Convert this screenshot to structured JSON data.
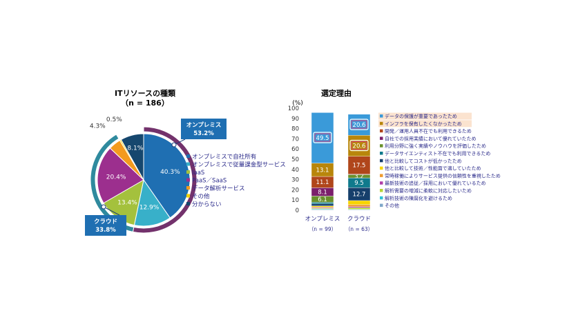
{
  "chart_data": [
    {
      "type": "pie",
      "title": "ITリソースの種類",
      "subtitle": "（n = 186）",
      "slices": [
        {
          "label": "オンプレミスで自社所有",
          "value": 40.3,
          "value_text": "40.3%",
          "color": "#1f6fb2"
        },
        {
          "label": "オンプレミスで従量課金型サービス",
          "value": 12.9,
          "value_text": "12.9%",
          "color": "#38b0c9"
        },
        {
          "label": "IaaS",
          "value": 13.4,
          "value_text": "13.4%",
          "color": "#a4c13d"
        },
        {
          "label": "PaaS／SaaS",
          "value": 20.4,
          "value_text": "20.4%",
          "color": "#9c2f8e"
        },
        {
          "label": "データ解析サービス",
          "value": 4.3,
          "value_text": "4.3%",
          "color": "#f39a1e"
        },
        {
          "label": "その他",
          "value": 0.5,
          "value_text": "0.5%",
          "color": "#f5d200"
        },
        {
          "label": "分からない",
          "value": 8.1,
          "value_text": "8.1%",
          "color": "#16476e"
        }
      ],
      "outer_groups": [
        {
          "label": "オンプレミス",
          "value_text": "53.2%",
          "value": 53.2,
          "color": "#73326c"
        },
        {
          "label": "クラウド",
          "value_text": "33.8%",
          "value": 33.8,
          "color": "#2f8a9e"
        }
      ],
      "legend_placement": "right"
    },
    {
      "type": "bar",
      "stacked": true,
      "title": "選定理由",
      "ylabel": "(%)",
      "ylim": [
        0,
        100
      ],
      "yticks": [
        "0",
        "10",
        "20",
        "30",
        "40",
        "50",
        "60",
        "70",
        "80",
        "90",
        "100"
      ],
      "categories": [
        {
          "label": "オンプレミス",
          "n": "（n = 99）"
        },
        {
          "label": "クラウド",
          "n": "（n = 63）"
        }
      ],
      "series": [
        {
          "name": "その他",
          "color": "#7fa7c9",
          "values": [
            0.6,
            0.5
          ]
        },
        {
          "name": "解析技術の陳腐化を避けるため",
          "color": "#2ec2d6",
          "values": [
            0.6,
            0.5
          ]
        },
        {
          "name": "解析需要の増減に柔軟に対応したいため",
          "color": "#b5d334",
          "values": [
            0.7,
            1.5
          ]
        },
        {
          "name": "最新技術の追従／採用において優れているため",
          "color": "#b23fa8",
          "values": [
            0.6,
            1.0
          ]
        },
        {
          "name": "常時稼働によりサービス提供の信頼性を重視したため",
          "color": "#ee9b30",
          "values": [
            0.8,
            2.0
          ]
        },
        {
          "name": "他と比較して技術／性能面で適していたため",
          "color": "#f6d400",
          "values": [
            1.0,
            4.0
          ]
        },
        {
          "name": "他と比較してコストが低かったため",
          "color": "#163f6b",
          "values": [
            2.0,
            12.7
          ],
          "labels": [
            "",
            "12.7"
          ]
        },
        {
          "name": "データサイエンティスト不在でも利用できるため",
          "color": "#0f7a8c",
          "values": [
            1.5,
            9.5
          ],
          "labels": [
            "",
            "9.5"
          ]
        },
        {
          "name": "利用分野に強く実績やノウハウを評価したため",
          "color": "#69902b",
          "values": [
            6.1,
            3.2
          ],
          "labels": [
            "6.1",
            "3.2"
          ]
        },
        {
          "name": "自社での採用実績において優れていたため",
          "color": "#7b1f6b",
          "values": [
            8.1,
            0.5
          ],
          "labels": [
            "8.1",
            ""
          ]
        },
        {
          "name": "開発／運用人員不在でも利用できるため",
          "color": "#b0461b",
          "values": [
            11.1,
            17.5
          ],
          "labels": [
            "11.1",
            "17.5"
          ]
        },
        {
          "name": "インフラを保有したくなかったため",
          "color": "#b8860b",
          "values": [
            13.1,
            20.6
          ],
          "labels": [
            "13.1",
            "20.6"
          ]
        },
        {
          "name": "データの保護が重要であったため",
          "color": "#3a9ad9",
          "values": [
            49.5,
            20.6
          ],
          "labels": [
            "49.5",
            "20.6"
          ]
        }
      ],
      "highlighted_legend": [
        "データの保護が重要であったため",
        "インフラを保有したくなかったため"
      ],
      "legend_placement": "right"
    }
  ]
}
